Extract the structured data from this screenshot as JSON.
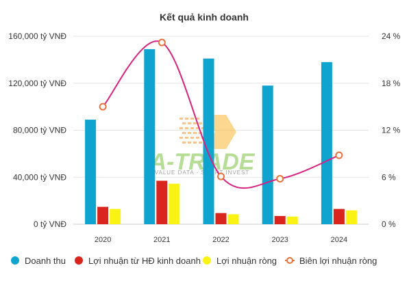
{
  "chart_data": {
    "type": "bar",
    "title": "Kết quả kinh doanh",
    "categories": [
      "2020",
      "2021",
      "2022",
      "2023",
      "2024"
    ],
    "y_left": {
      "ticks": [
        "0 tỷ VNĐ",
        "40,000 tỷ VNĐ",
        "80,000 tỷ VNĐ",
        "120,000 tỷ VNĐ",
        "160,000 tỷ VNĐ"
      ],
      "range": [
        0,
        160000
      ]
    },
    "y_right": {
      "ticks": [
        "0 %",
        "6 %",
        "12 %",
        "18 %",
        "24 %"
      ],
      "range": [
        0,
        24
      ]
    },
    "series": [
      {
        "name": "Doanh thu",
        "kind": "bar",
        "axis": "left",
        "color": "#0fa3d0",
        "values": [
          89000,
          149000,
          141000,
          118000,
          138000
        ]
      },
      {
        "name": "Lợi nhuận từ HĐ kinh doanh",
        "kind": "bar",
        "axis": "left",
        "color": "#d9251d",
        "values": [
          14800,
          37000,
          9500,
          7000,
          13000
        ]
      },
      {
        "name": "Lợi nhuận ròng",
        "kind": "bar",
        "axis": "left",
        "color": "#f9f212",
        "values": [
          13000,
          34500,
          8500,
          6500,
          11800
        ]
      },
      {
        "name": "Biên lợi nhuận ròng",
        "kind": "line",
        "axis": "right",
        "color": "#d8217f",
        "marker": "#e8703a",
        "values": [
          15.0,
          23.2,
          6.1,
          5.8,
          8.8
        ]
      }
    ],
    "grid": true,
    "legend_position": "bottom"
  },
  "watermark": {
    "text": "A-TRADE",
    "subtitle": "VALUE DATA - SMART INVEST"
  }
}
